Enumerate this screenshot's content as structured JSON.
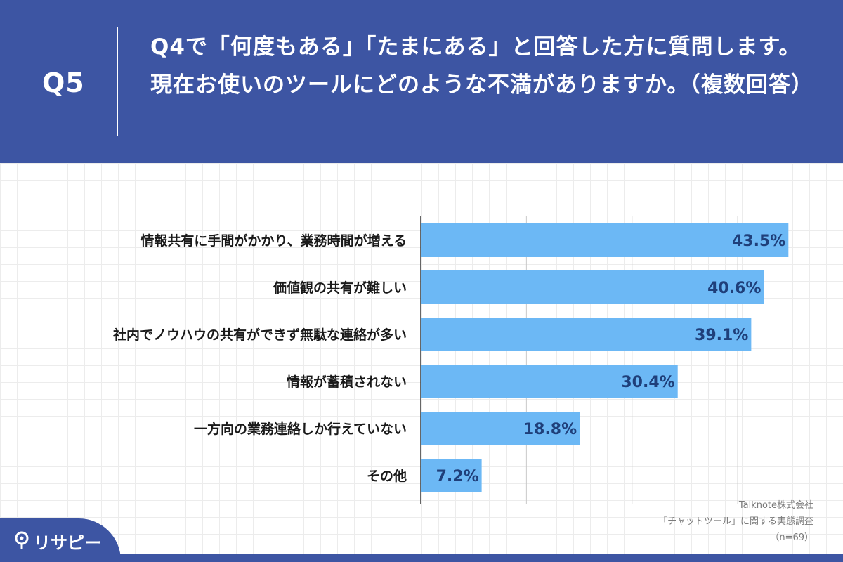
{
  "header": {
    "q_label": "Q5",
    "question": "Q4で「何度もある」「たまにある」と回答した方に質問します。現在お使いのツールにどのような不満がありますか。（複数回答）"
  },
  "chart_data": {
    "type": "bar",
    "orientation": "horizontal",
    "categories": [
      "情報共有に手間がかかり、業務時間が増える",
      "価値観の共有が難しい",
      "社内でノウハウの共有ができず無駄な連絡が多い",
      "情報が蓄積されない",
      "一方向の業務連絡しか行えていない",
      "その他"
    ],
    "values": [
      43.5,
      40.6,
      39.1,
      30.4,
      18.8,
      7.2
    ],
    "value_labels": [
      "43.5%",
      "40.6%",
      "39.1%",
      "30.4%",
      "18.8%",
      "7.2%"
    ],
    "xlim": [
      0,
      50
    ],
    "grid": true,
    "bar_color": "#6cb8f5"
  },
  "source": {
    "company": "Talknote株式会社",
    "survey": "「チャットツール」に関する実態調査",
    "n": "（n=69）"
  },
  "logo": {
    "text": "リサピー",
    "icon": "pin-icon"
  },
  "colors": {
    "brand": "#3d55a3",
    "bar": "#6cb8f5",
    "value_text": "#1f3f7a"
  }
}
